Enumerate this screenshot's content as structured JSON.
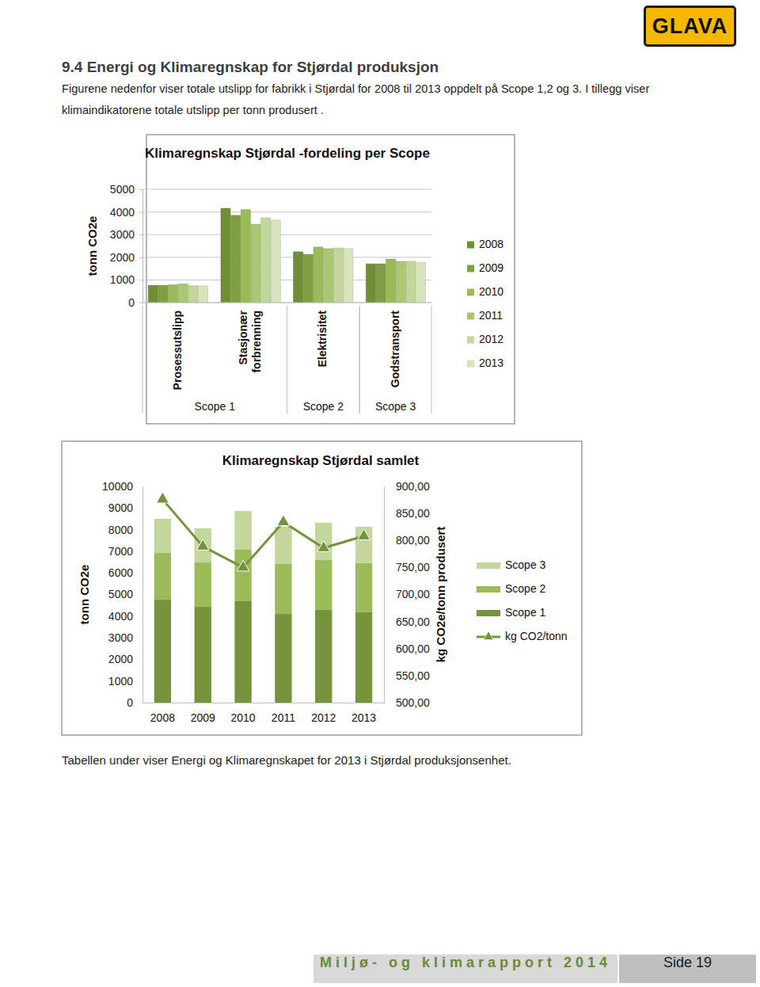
{
  "header": {
    "logo": "GLAVA",
    "section_title": "9.4 Energi og Klimaregnskap for Stjørdal produksjon",
    "intro": "Figurene nedenfor viser totale utslipp for fabrikk i Stjørdal for 2008 til 2013 oppdelt på Scope 1,2 og 3. I tillegg viser klimaindikatorene totale utslipp per tonn produsert ."
  },
  "chart_data": [
    {
      "type": "bar",
      "title": "Klimaregnskap Stjørdal -fordeling per Scope",
      "ylabel": "tonn CO2e",
      "categories": [
        "Prosessutslipp",
        "Stasjonær forbrenning",
        "Elektrisitet",
        "Godstransport"
      ],
      "category_groups": [
        "Scope 1",
        "Scope 1",
        "Scope 2",
        "Scope 3"
      ],
      "ylim": [
        0,
        5000
      ],
      "yticks": [
        0,
        1000,
        2000,
        3000,
        4000,
        5000
      ],
      "grid": true,
      "legend": "right",
      "series": [
        {
          "name": "2008",
          "color": "#6f8f37",
          "values": [
            760,
            4160,
            2240,
            1710
          ]
        },
        {
          "name": "2009",
          "color": "#7f9f45",
          "values": [
            760,
            3850,
            2130,
            1710
          ]
        },
        {
          "name": "2010",
          "color": "#9bbb59",
          "values": [
            780,
            4100,
            2450,
            1920
          ]
        },
        {
          "name": "2011",
          "color": "#abc774",
          "values": [
            820,
            3460,
            2380,
            1820
          ]
        },
        {
          "name": "2012",
          "color": "#c3d69b",
          "values": [
            740,
            3740,
            2410,
            1820
          ]
        },
        {
          "name": "2013",
          "color": "#d7e4bd",
          "values": [
            740,
            3640,
            2380,
            1780
          ]
        }
      ]
    },
    {
      "type": "bar",
      "stacked": true,
      "title": "Klimaregnskap Stjørdal samlet",
      "ylabel": "tonn CO2e",
      "y2label": "kg CO2e/tonn produsert",
      "categories": [
        "2008",
        "2009",
        "2010",
        "2011",
        "2012",
        "2013"
      ],
      "ylim": [
        0,
        10000
      ],
      "yticks": [
        0,
        1000,
        2000,
        3000,
        4000,
        5000,
        6000,
        7000,
        8000,
        9000,
        10000
      ],
      "y2lim": [
        500,
        900
      ],
      "y2ticks": [
        {
          "value": 500,
          "label": "500,00"
        },
        {
          "value": 550,
          "label": "550,00"
        },
        {
          "value": 600,
          "label": "600,00"
        },
        {
          "value": 650,
          "label": "650,00"
        },
        {
          "value": 700,
          "label": "700,00"
        },
        {
          "value": 750,
          "label": "750,00"
        },
        {
          "value": 800,
          "label": "800,00"
        },
        {
          "value": 850,
          "label": "850,00"
        },
        {
          "value": 900,
          "label": "900,00"
        }
      ],
      "grid": false,
      "legend": "right",
      "series": [
        {
          "name": "Scope 1",
          "color": "#77933c",
          "values": [
            4760,
            4430,
            4690,
            4100,
            4290,
            4180
          ]
        },
        {
          "name": "Scope 2",
          "color": "#9bbb59",
          "values": [
            2160,
            2050,
            2380,
            2310,
            2300,
            2270
          ]
        },
        {
          "name": "Scope 3",
          "color": "#c3d69b",
          "values": [
            1580,
            1580,
            1790,
            1720,
            1730,
            1680
          ]
        },
        {
          "name": "kg CO2/tonn",
          "type": "line",
          "axis": "y2",
          "marker": "triangle",
          "color": "#76923c",
          "values": [
            876,
            789,
            750,
            834,
            786,
            808
          ]
        }
      ]
    }
  ],
  "body": {
    "after_text": "Tabellen under viser Energi og Klimaregnskapet for 2013 i Stjørdal produksjonsenhet."
  },
  "footer": {
    "report": "Miljø- og klimarapport 2014",
    "page": "Side 19"
  }
}
